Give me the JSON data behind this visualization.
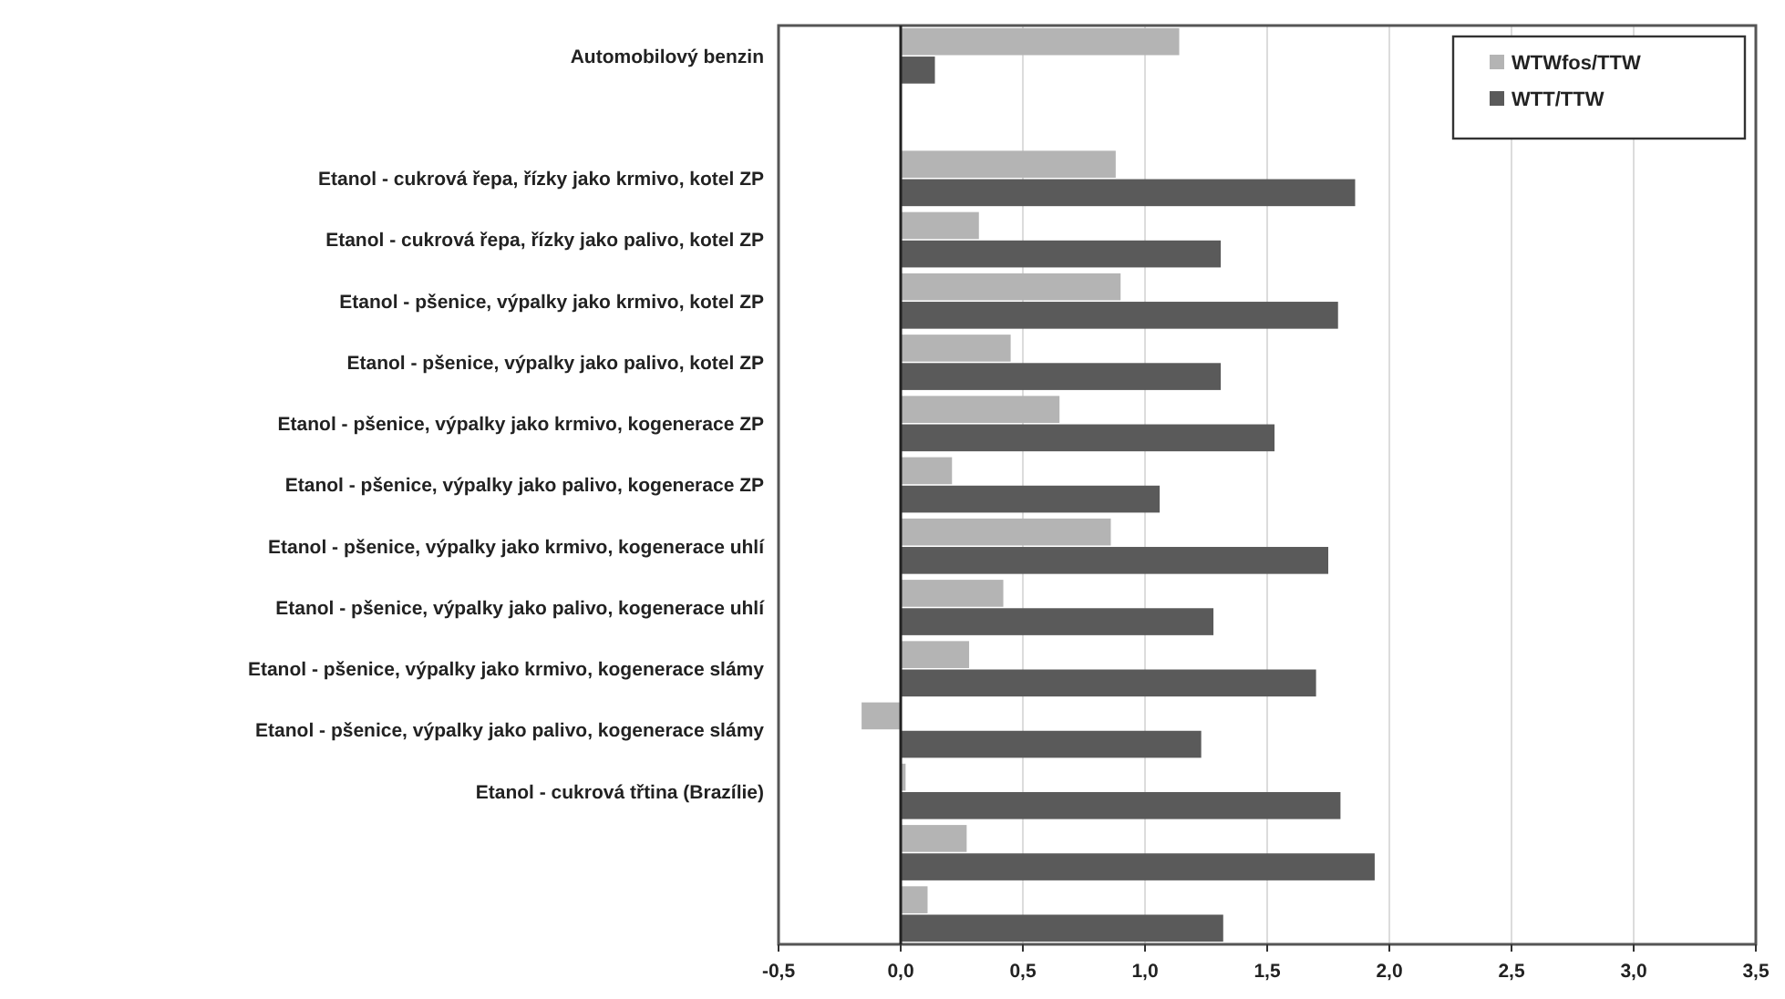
{
  "chart_data": {
    "type": "bar",
    "orientation": "horizontal",
    "categories": [
      "Automobilový benzin",
      null,
      "Etanol - cukrová řepa, řízky jako krmivo, kotel ZP",
      "Etanol - cukrová řepa, řízky jako palivo, kotel ZP",
      "Etanol - pšenice, výpalky jako krmivo, kotel ZP",
      "Etanol - pšenice, výpalky jako palivo, kotel ZP",
      "Etanol - pšenice, výpalky jako krmivo, kogenerace ZP",
      "Etanol - pšenice, výpalky jako palivo, kogenerace ZP",
      "Etanol - pšenice, výpalky jako krmivo, kogenerace uhlí",
      "Etanol - pšenice, výpalky jako palivo, kogenerace uhlí",
      "Etanol - pšenice, výpalky jako krmivo, kogenerace slámy",
      "Etanol - pšenice, výpalky jako palivo, kogenerace slámy",
      "Etanol - cukrová třtina (Brazílie)",
      null,
      null
    ],
    "series": [
      {
        "name": "WTWfos/TTW",
        "color": "#b4b4b4",
        "values": [
          1.14,
          null,
          0.88,
          0.32,
          0.9,
          0.45,
          0.65,
          0.21,
          0.86,
          0.42,
          0.28,
          -0.16,
          0.02,
          0.27,
          0.11
        ]
      },
      {
        "name": "WTT/TTW",
        "color": "#5a5a5a",
        "values": [
          0.14,
          null,
          1.86,
          1.31,
          1.79,
          1.31,
          1.53,
          1.06,
          1.75,
          1.28,
          1.7,
          1.23,
          1.8,
          1.94,
          1.32
        ]
      }
    ],
    "xlim": [
      -0.5,
      3.5
    ],
    "xticks": [
      {
        "value": -0.5,
        "label": "-0,5"
      },
      {
        "value": 0,
        "label": "0,0"
      },
      {
        "value": 0.5,
        "label": "0,5"
      },
      {
        "value": 1,
        "label": "1,0"
      },
      {
        "value": 1.5,
        "label": "1,5"
      },
      {
        "value": 2,
        "label": "2,0"
      },
      {
        "value": 2.5,
        "label": "2,5"
      },
      {
        "value": 3,
        "label": "3,0"
      },
      {
        "value": 3.5,
        "label": "3,5"
      }
    ],
    "grid": "x",
    "legend": "top right"
  }
}
